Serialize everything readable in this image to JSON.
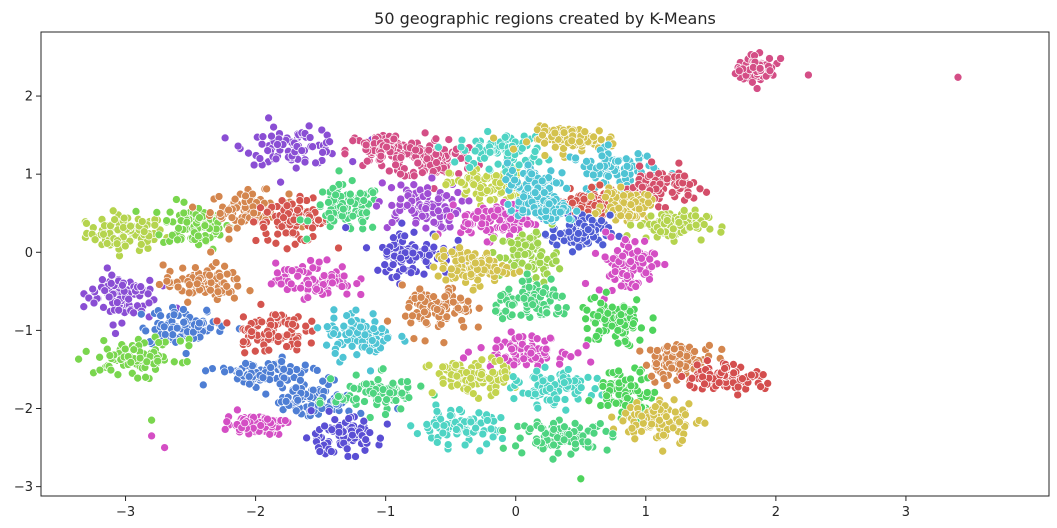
{
  "chart_data": {
    "type": "scatter",
    "title": "50 geographic regions created by K-Means",
    "xlabel": "",
    "ylabel": "",
    "xlim": [
      -3.65,
      4.1
    ],
    "ylim": [
      -3.12,
      2.82
    ],
    "xticks": [
      -3,
      -2,
      -1,
      0,
      1,
      2,
      3
    ],
    "yticks": [
      2,
      1,
      0,
      -1,
      -2,
      -3
    ],
    "xtick_labels": [
      "−3",
      "−2",
      "−1",
      "0",
      "1",
      "2",
      "3"
    ],
    "ytick_labels": [
      "2",
      "1",
      "0",
      "−1",
      "−2",
      "−3"
    ],
    "grid": false,
    "legend": "none",
    "marker_edge_color": "#ffffff",
    "n_clusters": 50,
    "clusters": [
      {
        "color": "#b5d44e",
        "cx": -3.0,
        "cy": 0.25,
        "sx": 0.2,
        "sy": 0.15
      },
      {
        "color": "#7ad64e",
        "cx": -2.45,
        "cy": 0.35,
        "sx": 0.18,
        "sy": 0.2
      },
      {
        "color": "#d4864e",
        "cx": -2.05,
        "cy": 0.55,
        "sx": 0.2,
        "sy": 0.15
      },
      {
        "color": "#d4544e",
        "cx": -1.7,
        "cy": 0.4,
        "sx": 0.2,
        "sy": 0.18
      },
      {
        "color": "#4ed480",
        "cx": -1.3,
        "cy": 0.55,
        "sx": 0.18,
        "sy": 0.2
      },
      {
        "color": "#8a4ed4",
        "cx": -1.7,
        "cy": 1.35,
        "sx": 0.25,
        "sy": 0.15
      },
      {
        "color": "#d44e86",
        "cx": -1.0,
        "cy": 1.3,
        "sx": 0.2,
        "sy": 0.15
      },
      {
        "color": "#d44e86",
        "cx": -0.6,
        "cy": 1.2,
        "sx": 0.2,
        "sy": 0.18
      },
      {
        "color": "#a04ed4",
        "cx": -0.75,
        "cy": 0.6,
        "sx": 0.22,
        "sy": 0.2
      },
      {
        "color": "#c4d44e",
        "cx": -0.2,
        "cy": 0.85,
        "sx": 0.2,
        "sy": 0.15
      },
      {
        "color": "#4ed4c4",
        "cx": -0.1,
        "cy": 1.3,
        "sx": 0.22,
        "sy": 0.15
      },
      {
        "color": "#d4c24e",
        "cx": 0.45,
        "cy": 1.45,
        "sx": 0.22,
        "sy": 0.1
      },
      {
        "color": "#4ec4d4",
        "cx": 0.75,
        "cy": 1.05,
        "sx": 0.22,
        "sy": 0.18
      },
      {
        "color": "#d44e6a",
        "cx": 1.1,
        "cy": 0.85,
        "sx": 0.18,
        "sy": 0.15
      },
      {
        "color": "#d4544e",
        "cx": 0.55,
        "cy": 0.6,
        "sx": 0.15,
        "sy": 0.12
      },
      {
        "color": "#d4c24e",
        "cx": 0.85,
        "cy": 0.6,
        "sx": 0.12,
        "sy": 0.12
      },
      {
        "color": "#b5d44e",
        "cx": 1.2,
        "cy": 0.35,
        "sx": 0.18,
        "sy": 0.12
      },
      {
        "color": "#4e5cd4",
        "cx": 0.5,
        "cy": 0.25,
        "sx": 0.15,
        "sy": 0.15
      },
      {
        "color": "#d44ec4",
        "cx": -0.15,
        "cy": 0.4,
        "sx": 0.18,
        "sy": 0.15
      },
      {
        "color": "#4ec4d4",
        "cx": 0.15,
        "cy": 0.85,
        "sx": 0.15,
        "sy": 0.2
      },
      {
        "color": "#5a4ed4",
        "cx": -0.8,
        "cy": 0.0,
        "sx": 0.2,
        "sy": 0.2
      },
      {
        "color": "#d44ec4",
        "cx": 0.85,
        "cy": -0.15,
        "sx": 0.15,
        "sy": 0.25
      },
      {
        "color": "#a0d44e",
        "cx": 0.1,
        "cy": -0.05,
        "sx": 0.15,
        "sy": 0.2
      },
      {
        "color": "#d4c24e",
        "cx": -0.35,
        "cy": -0.2,
        "sx": 0.18,
        "sy": 0.15
      },
      {
        "color": "#8a4ed4",
        "cx": -3.05,
        "cy": -0.55,
        "sx": 0.18,
        "sy": 0.22
      },
      {
        "color": "#d4864e",
        "cx": -2.4,
        "cy": -0.4,
        "sx": 0.2,
        "sy": 0.15
      },
      {
        "color": "#d44ec4",
        "cx": -1.55,
        "cy": -0.35,
        "sx": 0.2,
        "sy": 0.15
      },
      {
        "color": "#4e7ed4",
        "cx": -2.55,
        "cy": -0.95,
        "sx": 0.22,
        "sy": 0.15
      },
      {
        "color": "#d4544e",
        "cx": -1.9,
        "cy": -1.0,
        "sx": 0.18,
        "sy": 0.18
      },
      {
        "color": "#4ec4d4",
        "cx": -1.2,
        "cy": -1.05,
        "sx": 0.18,
        "sy": 0.2
      },
      {
        "color": "#d4864e",
        "cx": -0.6,
        "cy": -0.75,
        "sx": 0.18,
        "sy": 0.2
      },
      {
        "color": "#4ed480",
        "cx": 0.15,
        "cy": -0.65,
        "sx": 0.2,
        "sy": 0.15
      },
      {
        "color": "#4ed45c",
        "cx": 0.75,
        "cy": -0.9,
        "sx": 0.18,
        "sy": 0.2
      },
      {
        "color": "#d44ec4",
        "cx": 0.05,
        "cy": -1.25,
        "sx": 0.22,
        "sy": 0.12
      },
      {
        "color": "#7ad64e",
        "cx": -2.9,
        "cy": -1.35,
        "sx": 0.22,
        "sy": 0.15
      },
      {
        "color": "#4e7ed4",
        "cx": -1.95,
        "cy": -1.55,
        "sx": 0.25,
        "sy": 0.1
      },
      {
        "color": "#4e7ed4",
        "cx": -1.55,
        "cy": -1.9,
        "sx": 0.2,
        "sy": 0.15
      },
      {
        "color": "#4ed480",
        "cx": -1.05,
        "cy": -1.8,
        "sx": 0.22,
        "sy": 0.15
      },
      {
        "color": "#c4d44e",
        "cx": -0.35,
        "cy": -1.6,
        "sx": 0.2,
        "sy": 0.15
      },
      {
        "color": "#4ed4c4",
        "cx": 0.3,
        "cy": -1.75,
        "sx": 0.2,
        "sy": 0.15
      },
      {
        "color": "#4ed45c",
        "cx": 0.85,
        "cy": -1.8,
        "sx": 0.15,
        "sy": 0.2
      },
      {
        "color": "#d4864e",
        "cx": 1.25,
        "cy": -1.4,
        "sx": 0.18,
        "sy": 0.15
      },
      {
        "color": "#d44e4e",
        "cx": 1.6,
        "cy": -1.6,
        "sx": 0.2,
        "sy": 0.12
      },
      {
        "color": "#d4c24e",
        "cx": 1.1,
        "cy": -2.15,
        "sx": 0.2,
        "sy": 0.18
      },
      {
        "color": "#d44ec4",
        "cx": -2.0,
        "cy": -2.2,
        "sx": 0.15,
        "sy": 0.08
      },
      {
        "color": "#5a4ed4",
        "cx": -1.35,
        "cy": -2.35,
        "sx": 0.2,
        "sy": 0.15
      },
      {
        "color": "#4ed4c4",
        "cx": -0.45,
        "cy": -2.25,
        "sx": 0.22,
        "sy": 0.15
      },
      {
        "color": "#4ed480",
        "cx": 0.35,
        "cy": -2.35,
        "sx": 0.25,
        "sy": 0.12
      },
      {
        "color": "#4ec4d4",
        "cx": 0.25,
        "cy": 0.55,
        "sx": 0.12,
        "sy": 0.1
      },
      {
        "color": "#d44e86",
        "cx": 1.85,
        "cy": 2.35,
        "sx": 0.1,
        "sy": 0.1
      }
    ],
    "outliers": [
      {
        "color": "#d44e86",
        "x": 2.25,
        "y": 2.27
      },
      {
        "color": "#d44e86",
        "x": 3.4,
        "y": 2.24
      },
      {
        "color": "#4ed45c",
        "x": 0.5,
        "y": -2.9
      },
      {
        "color": "#7ad64e",
        "x": -2.8,
        "y": -2.15
      },
      {
        "color": "#d44ec4",
        "x": -2.8,
        "y": -2.35
      },
      {
        "color": "#d44ec4",
        "x": -2.7,
        "y": -2.5
      },
      {
        "color": "#8a4ed4",
        "x": -1.9,
        "y": 1.72
      },
      {
        "color": "#b5d44e",
        "x": -3.3,
        "y": 0.37
      }
    ]
  }
}
